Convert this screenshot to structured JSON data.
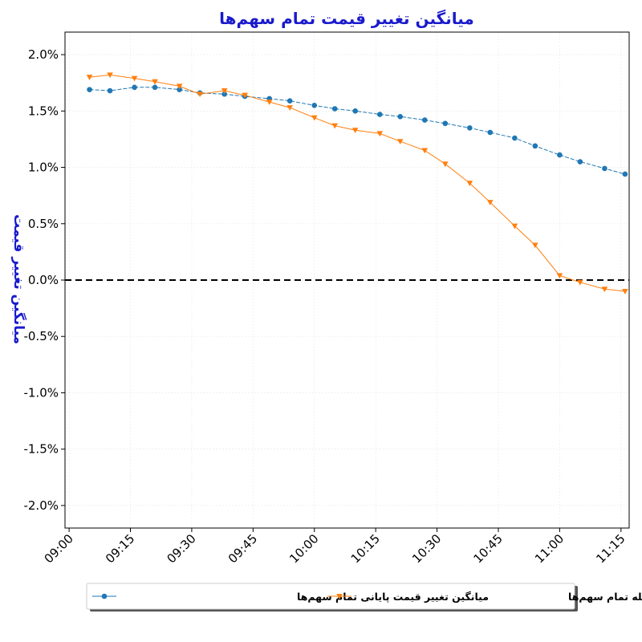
{
  "chart_data": {
    "type": "line",
    "title": "میانگین تغییر قیمت تمام سهم‌ها",
    "ylabel": "میانگین تغییر قیمت",
    "xlabel": "",
    "x_ticks": [
      "09:00",
      "09:15",
      "09:30",
      "09:45",
      "10:00",
      "10:15",
      "10:30",
      "10:45",
      "11:00",
      "11:15"
    ],
    "y_ticks": [
      "-2.0%",
      "-1.5%",
      "-1.0%",
      "-0.5%",
      "0.0%",
      "0.5%",
      "1.0%",
      "1.5%",
      "2.0%"
    ],
    "ylim": [
      -2.2,
      2.2
    ],
    "xlim": [
      "08:59",
      "11:17"
    ],
    "grid": true,
    "reference_line": {
      "y": 0,
      "style": "dashed"
    },
    "legend_position": "bottom-center",
    "series": [
      {
        "name": "میانگین تغییر قیمت پایانی تمام سهم‌ها",
        "color": "#1f77b4",
        "marker": "circle",
        "x": [
          "09:05",
          "09:10",
          "09:16",
          "09:21",
          "09:27",
          "09:32",
          "09:38",
          "09:43",
          "09:49",
          "09:54",
          "10:00",
          "10:05",
          "10:10",
          "10:16",
          "10:21",
          "10:27",
          "10:32",
          "10:38",
          "10:43",
          "10:49",
          "10:54",
          "11:00",
          "11:05",
          "11:11",
          "11:16"
        ],
        "values": [
          1.69,
          1.68,
          1.71,
          1.71,
          1.69,
          1.66,
          1.65,
          1.63,
          1.61,
          1.59,
          1.55,
          1.52,
          1.5,
          1.47,
          1.45,
          1.42,
          1.39,
          1.35,
          1.31,
          1.26,
          1.19,
          1.11,
          1.05,
          0.99,
          0.94
        ]
      },
      {
        "name": "میانگین تغییر قیمت آخرین معامله تمام سهم‌ها",
        "color": "#ff7f0e",
        "marker": "triangle-down",
        "x": [
          "09:05",
          "09:10",
          "09:16",
          "09:21",
          "09:27",
          "09:32",
          "09:38",
          "09:43",
          "09:49",
          "09:54",
          "10:00",
          "10:05",
          "10:10",
          "10:16",
          "10:21",
          "10:27",
          "10:32",
          "10:38",
          "10:43",
          "10:49",
          "10:54",
          "11:00",
          "11:05",
          "11:11",
          "11:16"
        ],
        "values": [
          1.8,
          1.82,
          1.79,
          1.76,
          1.72,
          1.65,
          1.68,
          1.64,
          1.58,
          1.53,
          1.44,
          1.37,
          1.33,
          1.3,
          1.23,
          1.15,
          1.03,
          0.86,
          0.69,
          0.48,
          0.31,
          0.04,
          -0.02,
          -0.08,
          -0.1
        ]
      }
    ]
  }
}
